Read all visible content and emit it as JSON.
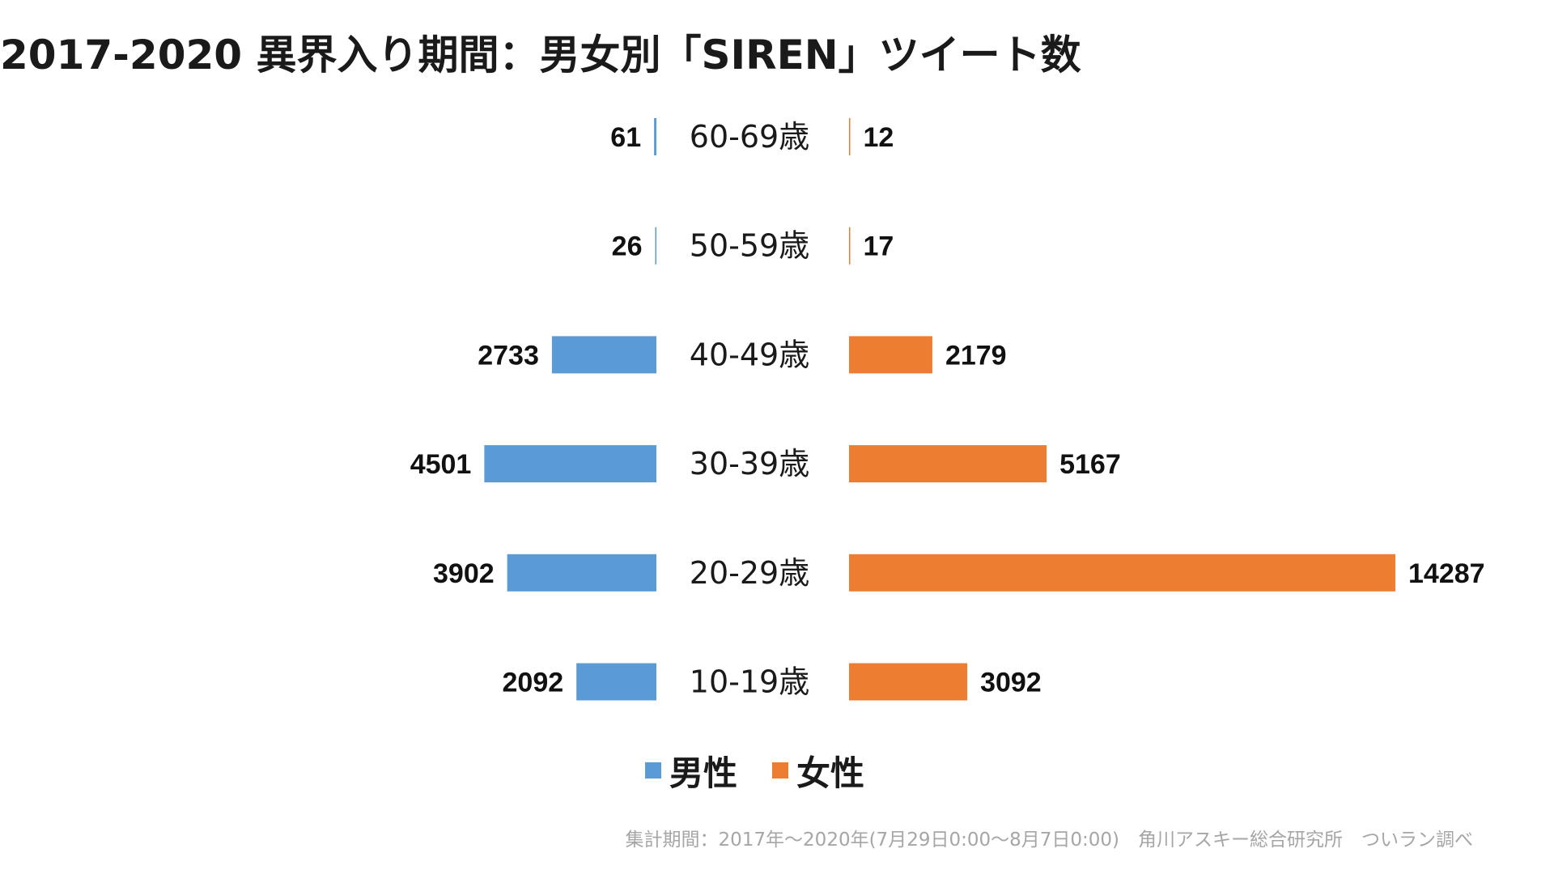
{
  "chart_data": {
    "type": "bar",
    "title": "2017-2020 異界入り期間：男女別「SIREN」ツイート数",
    "categories": [
      "60-69歳",
      "50-59歳",
      "40-49歳",
      "30-39歳",
      "20-29歳",
      "10-19歳"
    ],
    "series": [
      {
        "name": "男性",
        "color": "#5B9BD5",
        "values": [
          61,
          26,
          2733,
          4501,
          3902,
          2092
        ]
      },
      {
        "name": "女性",
        "color": "#ED7D31",
        "values": [
          12,
          17,
          2179,
          5167,
          14287,
          3092
        ]
      }
    ],
    "legend_position": "bottom",
    "grid": false,
    "footnote": "集計期間：2017年～2020年(7月29日0:00～8月7日0:00)　角川アスキー総合研究所　ついラン調べ"
  }
}
